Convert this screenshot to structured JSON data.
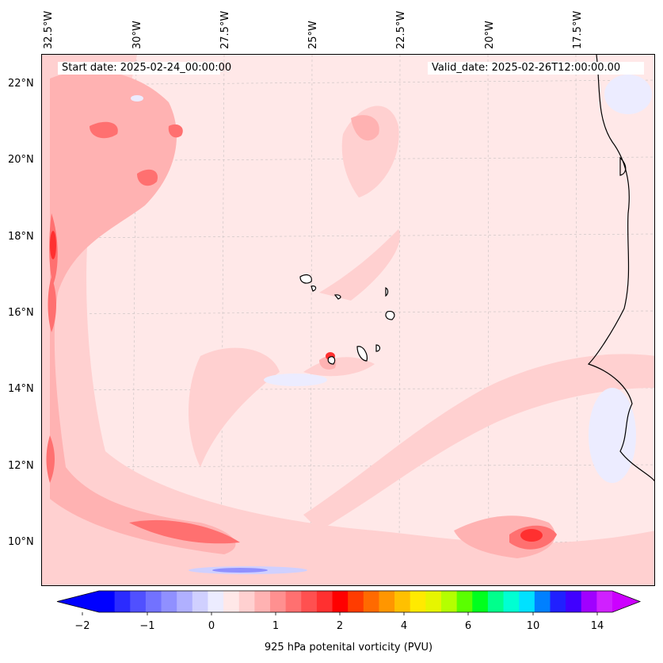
{
  "map": {
    "start_date": "Start date: 2025-02-24_00:00:00",
    "valid_date": "Valid_date: 2025-02-26T12:00:00.00",
    "lon_labels": [
      "32.5°W",
      "30°W",
      "27.5°W",
      "25°W",
      "22.5°W",
      "20°W",
      "17.5°W"
    ],
    "lat_labels": [
      "22°N",
      "20°N",
      "18°N",
      "16°N",
      "14°N",
      "12°N",
      "10°N"
    ],
    "background_color": "#ffe8e8"
  },
  "colorbar": {
    "label": "925 hPa potenital vorticity (PVU)",
    "tick_labels": [
      "−2",
      "−1",
      "0",
      "1",
      "2",
      "4",
      "6",
      "10",
      "14"
    ],
    "colors": [
      "#0000ff",
      "#2b2bff",
      "#5050ff",
      "#7272ff",
      "#9090ff",
      "#b0b0ff",
      "#d0d0ff",
      "#ececff",
      "#ffe8e8",
      "#ffd0d0",
      "#ffb2b2",
      "#ff9090",
      "#ff7070",
      "#ff5050",
      "#ff3030",
      "#ff0000",
      "#ff3c00",
      "#ff6a00",
      "#ff9600",
      "#ffc000",
      "#ffea00",
      "#e6f500",
      "#b4ff00",
      "#5aff00",
      "#00ff1e",
      "#00ff8c",
      "#00ffd2",
      "#00e1ff",
      "#0080ff",
      "#2020ff",
      "#4000ff",
      "#a000ff",
      "#d020ff"
    ],
    "under_color": "#0000ff",
    "over_color": "#cc00ff"
  }
}
